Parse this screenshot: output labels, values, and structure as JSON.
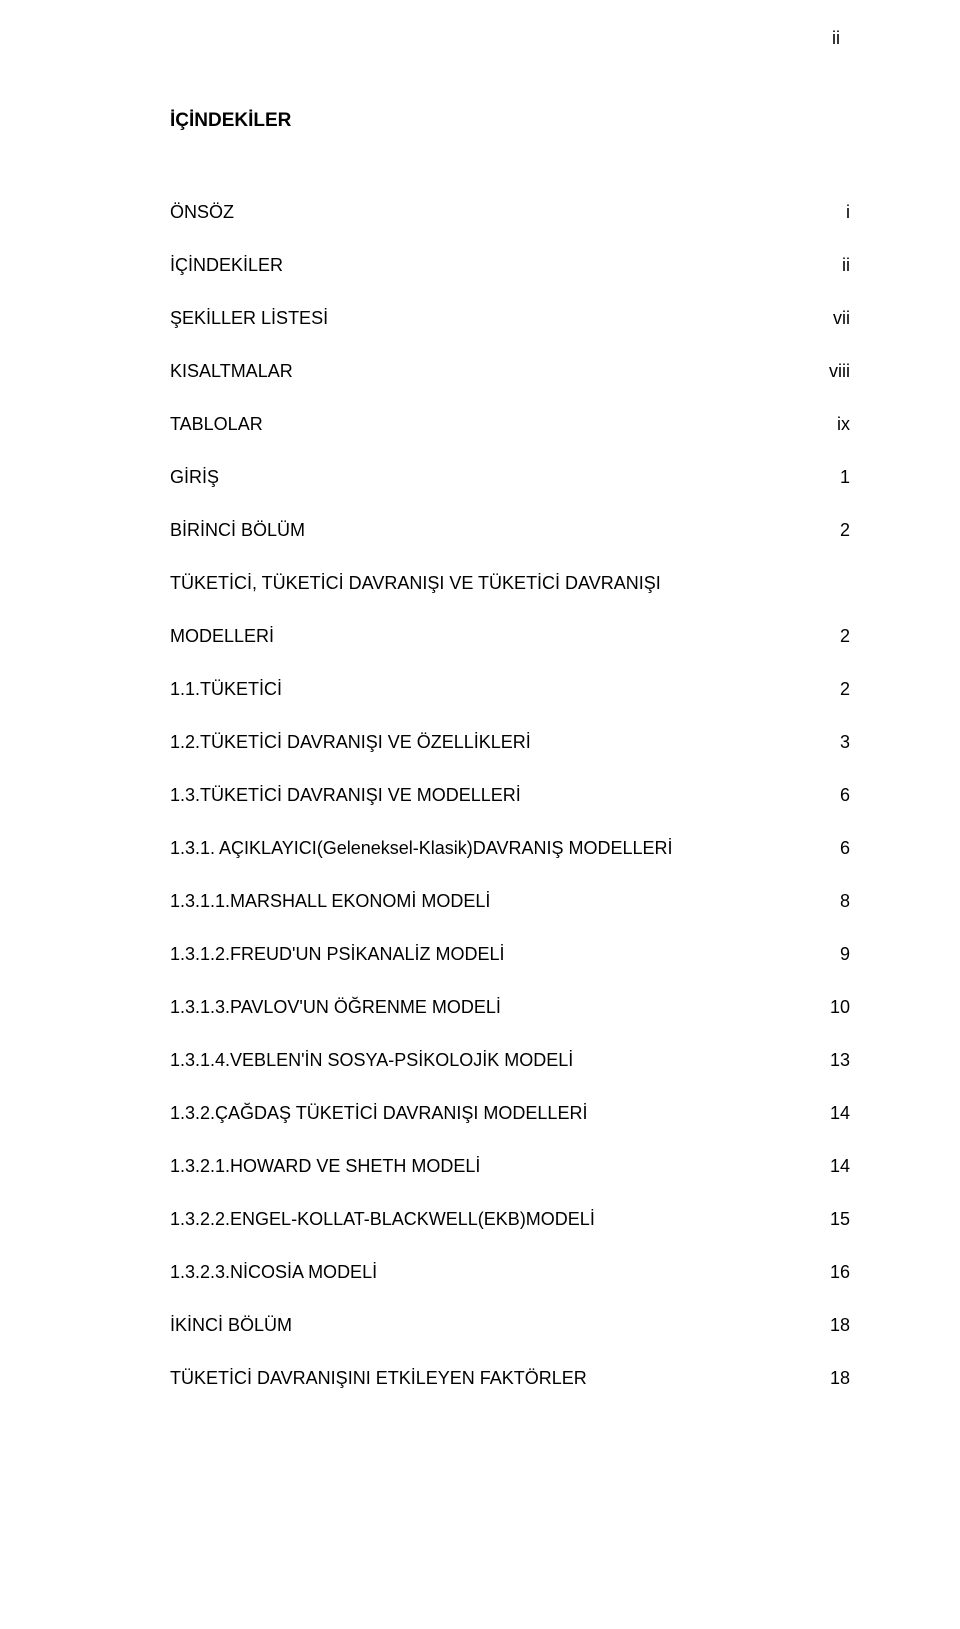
{
  "page_number_label": "ii",
  "title": "İÇİNDEKİLER",
  "font": {
    "family": "Arial, Helvetica, sans-serif",
    "title_size_pt": 19,
    "body_size_pt": 18,
    "title_weight": 700,
    "body_weight": 400,
    "color": "#000000"
  },
  "background_color": "#ffffff",
  "entries": [
    {
      "label": "ÖNSÖZ",
      "page": "i"
    },
    {
      "label": "İÇİNDEKİLER",
      "page": "ii"
    },
    {
      "label": "ŞEKİLLER LİSTESİ",
      "page": "vii"
    },
    {
      "label": "KISALTMALAR",
      "page": "viii"
    },
    {
      "label": "TABLOLAR",
      "page": "ix"
    },
    {
      "label": "GİRİŞ",
      "page": "1"
    },
    {
      "label": "BİRİNCİ BÖLÜM",
      "page": "2"
    },
    {
      "label": "TÜKETİCİ, TÜKETİCİ DAVRANIŞI VE TÜKETİCİ DAVRANIŞI",
      "page": ""
    },
    {
      "label": "MODELLERİ",
      "page": "2"
    },
    {
      "label": "1.1.TÜKETİCİ",
      "page": "2"
    },
    {
      "label": "1.2.TÜKETİCİ DAVRANIŞI VE ÖZELLİKLERİ",
      "page": "3"
    },
    {
      "label": "1.3.TÜKETİCİ DAVRANIŞI VE MODELLERİ",
      "page": "6"
    },
    {
      "label": "1.3.1. AÇIKLAYICI(Geleneksel-Klasik)DAVRANIŞ MODELLERİ",
      "page": "6"
    },
    {
      "label": "1.3.1.1.MARSHALL EKONOMİ MODELİ",
      "page": "8"
    },
    {
      "label": "1.3.1.2.FREUD'UN PSİKANALİZ MODELİ",
      "page": "9"
    },
    {
      "label": "1.3.1.3.PAVLOV'UN ÖĞRENME MODELİ",
      "page": "10"
    },
    {
      "label": "1.3.1.4.VEBLEN'İN SOSYA-PSİKOLOJİK MODELİ",
      "page": "13"
    },
    {
      "label": "1.3.2.ÇAĞDAŞ TÜKETİCİ DAVRANIŞI MODELLERİ",
      "page": "14"
    },
    {
      "label": "1.3.2.1.HOWARD VE SHETH MODELİ",
      "page": "14"
    },
    {
      "label": "1.3.2.2.ENGEL-KOLLAT-BLACKWELL(EKB)MODELİ",
      "page": "15"
    },
    {
      "label": "1.3.2.3.NİCOSİA MODELİ",
      "page": "16"
    },
    {
      "label": "İKİNCİ BÖLÜM",
      "page": "18"
    },
    {
      "label": "TÜKETİCİ DAVRANIŞINI ETKİLEYEN FAKTÖRLER",
      "page": "18"
    }
  ]
}
